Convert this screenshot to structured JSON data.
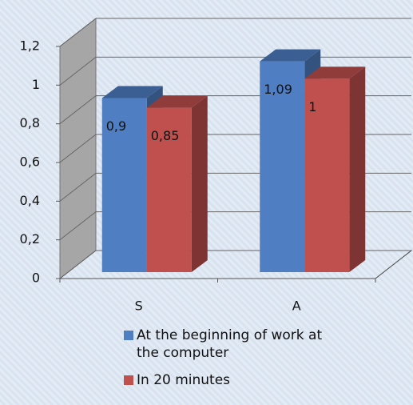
{
  "chart_data": {
    "type": "bar3d",
    "categories": [
      "S",
      "A"
    ],
    "series": [
      {
        "name": "At the beginning of work at the computer",
        "color": "#4f7fc2",
        "values": [
          0.9,
          1.09
        ],
        "value_labels": [
          "0,9",
          "1,09"
        ]
      },
      {
        "name": "In 20 minutes",
        "color": "#c0504d",
        "values": [
          0.85,
          1
        ],
        "value_labels": [
          "0,85",
          "1"
        ]
      }
    ],
    "ylim": [
      0,
      1.2
    ],
    "yticks": [
      0,
      {
        "value": 0.2,
        "label": "0,2"
      },
      {
        "value": 0.4,
        "label": "0,4"
      },
      {
        "value": 0.6,
        "label": "0,6"
      },
      {
        "value": 0.8,
        "label": "0,8"
      },
      1,
      {
        "value": 1.2,
        "label": "1,2"
      }
    ],
    "grid": true,
    "legend": "bottom"
  }
}
